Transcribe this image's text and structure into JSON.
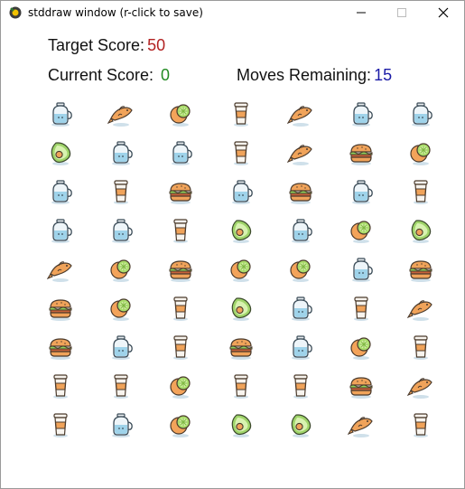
{
  "window": {
    "title": "stddraw window (r-click to save)"
  },
  "hud": {
    "target_label": "Target Score:",
    "target_value": "50",
    "target_color": "#b22222",
    "current_label": "Current Score:",
    "current_value": "0",
    "current_color": "#228b22",
    "moves_label": "Moves Remaining:",
    "moves_value": "15",
    "moves_color": "#1a1aa6"
  },
  "board": {
    "rows": 9,
    "cols": 7,
    "grid": [
      [
        "coffee-pot",
        "fish",
        "lime",
        "coffee-cup",
        "fish",
        "coffee-pot",
        "coffee-pot"
      ],
      [
        "avocado",
        "coffee-pot",
        "coffee-pot",
        "coffee-cup",
        "fish",
        "burger",
        "lime"
      ],
      [
        "coffee-pot",
        "coffee-cup",
        "burger",
        "coffee-pot",
        "burger",
        "coffee-pot",
        "coffee-cup"
      ],
      [
        "coffee-pot",
        "coffee-pot",
        "coffee-cup",
        "avocado",
        "coffee-pot",
        "lime",
        "avocado"
      ],
      [
        "fish",
        "lime",
        "burger",
        "lime",
        "lime",
        "coffee-pot",
        "burger"
      ],
      [
        "burger",
        "lime",
        "coffee-cup",
        "avocado",
        "coffee-pot",
        "coffee-cup",
        "fish"
      ],
      [
        "burger",
        "coffee-pot",
        "coffee-cup",
        "burger",
        "coffee-pot",
        "lime",
        "coffee-cup"
      ],
      [
        "coffee-cup",
        "coffee-cup",
        "lime",
        "coffee-cup",
        "coffee-cup",
        "burger",
        "fish"
      ],
      [
        "coffee-cup",
        "coffee-pot",
        "lime",
        "avocado",
        "avocado",
        "fish",
        "coffee-cup"
      ]
    ]
  }
}
